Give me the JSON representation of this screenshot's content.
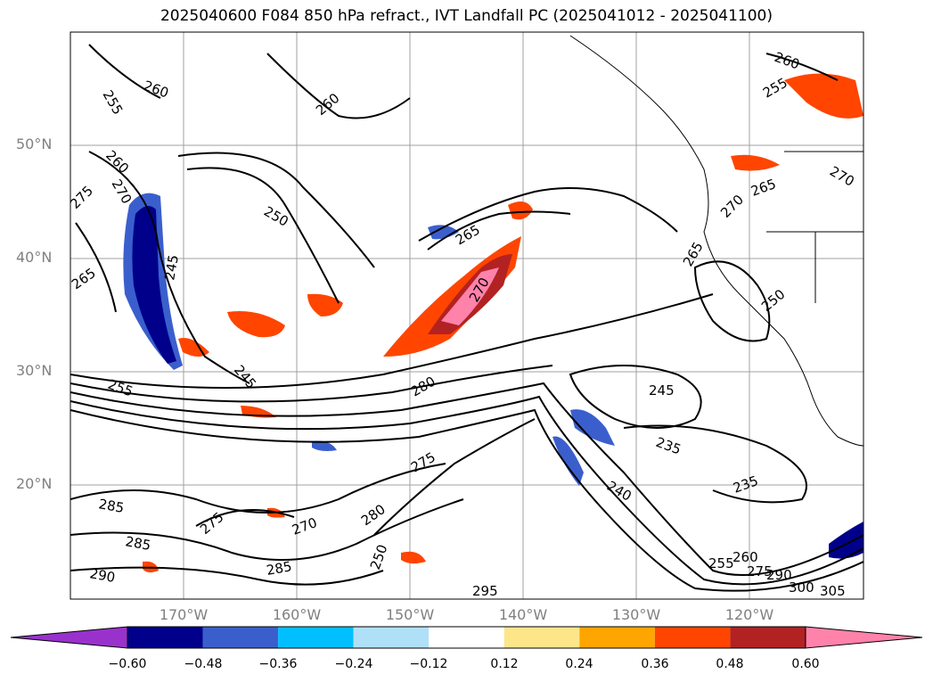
{
  "title": "2025040600 F084 850 hPa refract., IVT Landfall PC (2025041012 - 2025041100)",
  "lat_labels": [
    "50°N",
    "40°N",
    "30°N",
    "20°N"
  ],
  "lon_labels": [
    "170°W",
    "160°W",
    "150°W",
    "140°W",
    "130°W",
    "120°W"
  ],
  "colorbar": {
    "ticks": [
      "−0.60",
      "−0.48",
      "−0.36",
      "−0.24",
      "−0.12",
      "0.12",
      "0.24",
      "0.36",
      "0.48",
      "0.60"
    ],
    "colors": [
      "#9932cc",
      "#00008b",
      "#3a5fcd",
      "#00bfff",
      "#b0e0f8",
      "#ffffff",
      "#fde68a",
      "#ffa500",
      "#ff4500",
      "#b22222",
      "#ff82ab"
    ]
  },
  "contour_labels": [
    "255",
    "260",
    "260",
    "260",
    "275",
    "270",
    "265",
    "250",
    "245",
    "245",
    "255",
    "265",
    "270",
    "280",
    "275",
    "270",
    "275",
    "280",
    "285",
    "285",
    "290",
    "295",
    "285",
    "260",
    "255",
    "245",
    "235",
    "240",
    "235",
    "250",
    "255",
    "260",
    "275",
    "290",
    "300",
    "305",
    "270",
    "265",
    "270",
    "265",
    "250"
  ],
  "colors": {
    "contour": "#000000",
    "grid": "#a0a0a0",
    "coast": "#000000"
  }
}
